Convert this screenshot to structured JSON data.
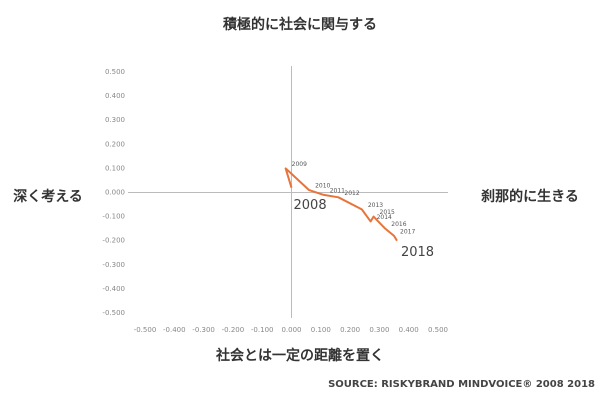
{
  "chart_data": {
    "type": "line",
    "axis_labels": {
      "top": "積極的に社会に関与する",
      "bottom": "社会とは一定の距離を置く",
      "left": "深く考える",
      "right": "刹那的に生きる"
    },
    "source": "SOURCE: RISKYBRAND MINDVOICE® 2008 2018",
    "series": [
      {
        "point_labels": [
          "2008",
          "2009",
          "2010",
          "2011",
          "2012",
          "2013",
          "2014",
          "2015",
          "2016",
          "2017",
          "2018"
        ],
        "color": "#e8743b",
        "x": [
          0.0,
          -0.02,
          0.06,
          0.11,
          0.16,
          0.24,
          0.27,
          0.28,
          0.32,
          0.35,
          0.36
        ],
        "values": [
          0.02,
          0.1,
          0.01,
          -0.01,
          -0.02,
          -0.07,
          -0.12,
          -0.1,
          -0.15,
          -0.18,
          -0.2
        ]
      }
    ],
    "xlim": [
      -0.5,
      0.5
    ],
    "ylim": [
      -0.5,
      0.5
    ],
    "xticks": [
      {
        "value": -0.5,
        "label": "-0.500"
      },
      {
        "value": -0.4,
        "label": "-0.400"
      },
      {
        "value": -0.3,
        "label": "-0.300"
      },
      {
        "value": -0.2,
        "label": "-0.200"
      },
      {
        "value": -0.1,
        "label": "-0.100"
      },
      {
        "value": 0,
        "label": "0.000"
      },
      {
        "value": 0.1,
        "label": "0.100"
      },
      {
        "value": 0.2,
        "label": "0.200"
      },
      {
        "value": 0.3,
        "label": "0.300"
      },
      {
        "value": 0.4,
        "label": "0.400"
      },
      {
        "value": 0.5,
        "label": "0.500"
      }
    ],
    "yticks": [
      {
        "value": 0.5,
        "label": "0.500"
      },
      {
        "value": 0.4,
        "label": "0.400"
      },
      {
        "value": 0.3,
        "label": "0.300"
      },
      {
        "value": 0.2,
        "label": "0.200"
      },
      {
        "value": 0.1,
        "label": "0.100"
      },
      {
        "value": 0,
        "label": "0.000"
      },
      {
        "value": -0.1,
        "label": "-0.100"
      },
      {
        "value": -0.2,
        "label": "-0.200"
      },
      {
        "value": -0.3,
        "label": "-0.300"
      },
      {
        "value": -0.4,
        "label": "-0.400"
      },
      {
        "value": -0.5,
        "label": "-0.500"
      }
    ]
  }
}
